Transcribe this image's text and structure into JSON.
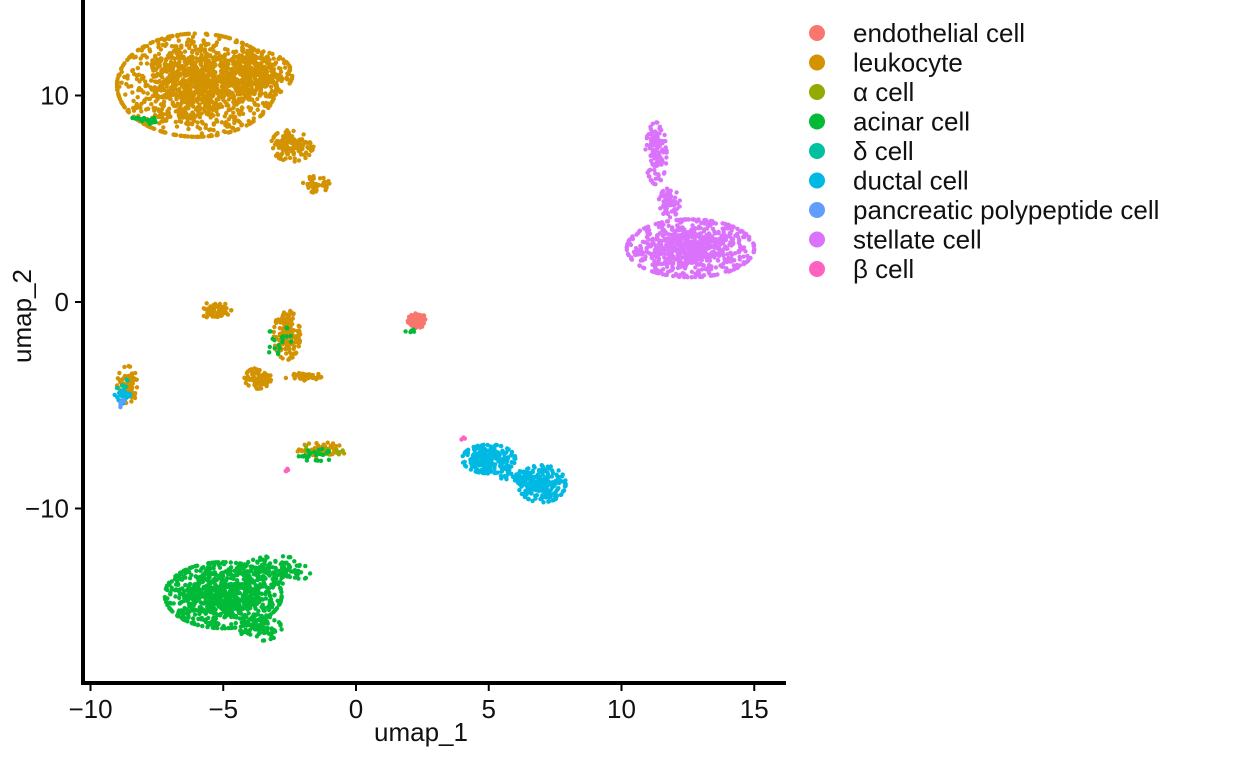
{
  "chart_data": {
    "type": "scatter",
    "title": "",
    "xlabel": "umap_1",
    "ylabel": "umap_2",
    "xlim": [
      -10.5,
      16.5
    ],
    "ylim": [
      -18.5,
      14.5
    ],
    "xticks": [
      -10,
      -5,
      0,
      5,
      10,
      15
    ],
    "yticks": [
      -10,
      0,
      10
    ],
    "xtick_labels": [
      "−10",
      "−5",
      "0",
      "5",
      "10",
      "15"
    ],
    "ytick_labels": [
      "−10",
      "0",
      "10"
    ],
    "grid": false,
    "legend_position": "right",
    "series": [
      {
        "name": "endothelial cell",
        "color": "#F8766D",
        "clusters": [
          {
            "cx": 2.3,
            "cy": -0.9,
            "rx": 0.35,
            "ry": 0.35,
            "n": 70
          }
        ]
      },
      {
        "name": "leukocyte",
        "color": "#D39200",
        "clusters": [
          {
            "cx": -6.0,
            "cy": 10.5,
            "rx": 3.0,
            "ry": 2.5,
            "n": 1300
          },
          {
            "cx": -4.0,
            "cy": 11.0,
            "rx": 1.6,
            "ry": 1.2,
            "n": 350
          },
          {
            "cx": -2.4,
            "cy": 7.6,
            "rx": 0.8,
            "ry": 0.8,
            "n": 140
          },
          {
            "cx": -1.5,
            "cy": 5.7,
            "rx": 0.5,
            "ry": 0.4,
            "n": 40
          },
          {
            "cx": -5.3,
            "cy": -0.4,
            "rx": 0.6,
            "ry": 0.4,
            "n": 60
          },
          {
            "cx": -2.6,
            "cy": -1.6,
            "rx": 0.5,
            "ry": 1.2,
            "n": 140
          },
          {
            "cx": -3.7,
            "cy": -3.7,
            "rx": 0.5,
            "ry": 0.5,
            "n": 90
          },
          {
            "cx": -2.0,
            "cy": -3.6,
            "rx": 0.7,
            "ry": 0.2,
            "n": 40
          },
          {
            "cx": -8.6,
            "cy": -4.0,
            "rx": 0.4,
            "ry": 0.9,
            "n": 70
          },
          {
            "cx": -1.3,
            "cy": -7.2,
            "rx": 0.9,
            "ry": 0.4,
            "n": 50
          }
        ]
      },
      {
        "name": "α cell",
        "color": "#93AA00",
        "clusters": [
          {
            "cx": -1.3,
            "cy": -7.2,
            "rx": 0.8,
            "ry": 0.3,
            "n": 10
          }
        ]
      },
      {
        "name": "acinar cell",
        "color": "#00BA38",
        "clusters": [
          {
            "cx": -5.0,
            "cy": -14.2,
            "rx": 2.2,
            "ry": 1.6,
            "n": 900
          },
          {
            "cx": -3.0,
            "cy": -13.0,
            "rx": 1.3,
            "ry": 0.7,
            "n": 120
          },
          {
            "cx": -3.6,
            "cy": -15.8,
            "rx": 0.8,
            "ry": 0.6,
            "n": 80
          },
          {
            "cx": -8.0,
            "cy": 8.8,
            "rx": 0.5,
            "ry": 0.2,
            "n": 25
          },
          {
            "cx": -2.9,
            "cy": -1.9,
            "rx": 0.5,
            "ry": 0.8,
            "n": 20
          },
          {
            "cx": -1.5,
            "cy": -7.4,
            "rx": 0.8,
            "ry": 0.3,
            "n": 25
          },
          {
            "cx": 2.0,
            "cy": -1.4,
            "rx": 0.2,
            "ry": 0.1,
            "n": 6
          }
        ]
      },
      {
        "name": "δ cell",
        "color": "#00C19F",
        "clusters": [
          {
            "cx": -8.7,
            "cy": -4.2,
            "rx": 0.3,
            "ry": 0.6,
            "n": 8
          }
        ]
      },
      {
        "name": "ductal cell",
        "color": "#00B9E3",
        "clusters": [
          {
            "cx": 5.0,
            "cy": -7.6,
            "rx": 1.0,
            "ry": 0.7,
            "n": 220
          },
          {
            "cx": 7.0,
            "cy": -8.8,
            "rx": 0.9,
            "ry": 0.9,
            "n": 220
          },
          {
            "cx": 6.0,
            "cy": -8.4,
            "rx": 0.6,
            "ry": 0.3,
            "n": 40
          },
          {
            "cx": -8.8,
            "cy": -4.6,
            "rx": 0.3,
            "ry": 0.4,
            "n": 25
          }
        ]
      },
      {
        "name": "pancreatic polypeptide cell",
        "color": "#619CFF",
        "clusters": [
          {
            "cx": -8.8,
            "cy": -4.9,
            "rx": 0.2,
            "ry": 0.2,
            "n": 5
          }
        ]
      },
      {
        "name": "stellate cell",
        "color": "#DB72FB",
        "clusters": [
          {
            "cx": 12.6,
            "cy": 2.6,
            "rx": 2.4,
            "ry": 1.4,
            "n": 800
          },
          {
            "cx": 11.3,
            "cy": 7.2,
            "rx": 0.4,
            "ry": 1.5,
            "n": 120
          },
          {
            "cx": 11.8,
            "cy": 4.8,
            "rx": 0.4,
            "ry": 0.7,
            "n": 60
          }
        ]
      },
      {
        "name": "β cell",
        "color": "#FF61C3",
        "clusters": [
          {
            "cx": -2.6,
            "cy": -8.1,
            "rx": 0.1,
            "ry": 0.1,
            "n": 4
          },
          {
            "cx": 4.0,
            "cy": -6.6,
            "rx": 0.1,
            "ry": 0.1,
            "n": 3
          }
        ]
      }
    ]
  }
}
